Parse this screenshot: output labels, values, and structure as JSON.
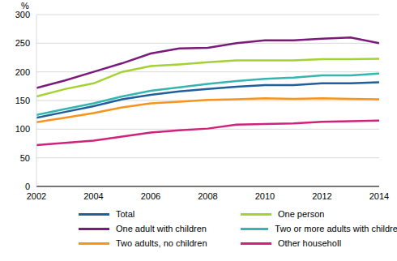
{
  "chart_data": {
    "type": "line",
    "y_label": "%",
    "x": [
      2002,
      2003,
      2004,
      2005,
      2006,
      2007,
      2008,
      2009,
      2010,
      2011,
      2012,
      2013,
      2014
    ],
    "xlim": [
      2002,
      2014
    ],
    "xticks": [
      2002,
      2004,
      2006,
      2008,
      2010,
      2012,
      2014
    ],
    "ylim": [
      0,
      300
    ],
    "yticks": [
      0,
      50,
      100,
      150,
      200,
      250,
      300
    ],
    "grid": true,
    "legend": "bottom",
    "series": [
      {
        "name": "Total",
        "color": "#1f5f9a",
        "values": [
          120,
          130,
          140,
          152,
          160,
          166,
          170,
          174,
          177,
          177,
          180,
          180,
          182
        ]
      },
      {
        "name": "One person",
        "color": "#a4d233",
        "values": [
          157,
          170,
          180,
          200,
          210,
          213,
          217,
          220,
          220,
          220,
          222,
          222,
          223
        ]
      },
      {
        "name": "One adult with children",
        "color": "#7a1a7a",
        "values": [
          172,
          185,
          200,
          215,
          232,
          241,
          242,
          250,
          255,
          255,
          258,
          260,
          250
        ]
      },
      {
        "name": "Two or more adults with children",
        "color": "#35b5b0",
        "values": [
          125,
          135,
          145,
          157,
          167,
          173,
          179,
          184,
          188,
          190,
          194,
          194,
          197
        ]
      },
      {
        "name": "Two adults, no children",
        "color": "#f7941d",
        "values": [
          112,
          120,
          128,
          138,
          145,
          148,
          151,
          152,
          154,
          153,
          154,
          153,
          152
        ]
      },
      {
        "name": "Other househoIl",
        "color": "#d0227a",
        "values": [
          72,
          76,
          80,
          87,
          94,
          98,
          101,
          108,
          109,
          110,
          113,
          114,
          115
        ]
      }
    ]
  }
}
